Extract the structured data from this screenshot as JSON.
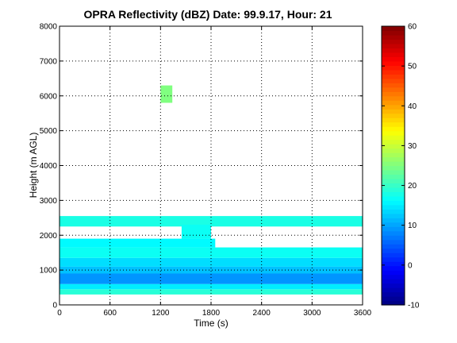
{
  "chart_data": {
    "type": "heatmap",
    "title": "OPRA Reflectivity (dBZ)  Date: 99.9.17, Hour: 21",
    "xlabel": "Time (s)",
    "ylabel": "Height (m AGL)",
    "xlim": [
      0,
      3600
    ],
    "ylim": [
      0,
      8000
    ],
    "x_ticks": [
      "0",
      "600",
      "1200",
      "1800",
      "2400",
      "3000",
      "3600"
    ],
    "y_ticks": [
      "0",
      "1000",
      "2000",
      "3000",
      "4000",
      "5000",
      "6000",
      "7000",
      "8000"
    ],
    "grid": true,
    "colorbar": {
      "range": [
        -10,
        60
      ],
      "ticks": [
        "-10",
        "0",
        "10",
        "20",
        "30",
        "40",
        "50",
        "60"
      ],
      "colormap": "jet"
    },
    "regions": [
      {
        "t0": 0,
        "t1": 3600,
        "h0": 300,
        "h1": 450,
        "dbz": 19
      },
      {
        "t0": 0,
        "t1": 3600,
        "h0": 450,
        "h1": 600,
        "dbz": 15
      },
      {
        "t0": 0,
        "t1": 3600,
        "h0": 600,
        "h1": 900,
        "dbz": 9
      },
      {
        "t0": 0,
        "t1": 3600,
        "h0": 900,
        "h1": 1100,
        "dbz": 12
      },
      {
        "t0": 0,
        "t1": 3600,
        "h0": 1100,
        "h1": 1350,
        "dbz": 14
      },
      {
        "t0": 0,
        "t1": 3600,
        "h0": 1350,
        "h1": 1650,
        "dbz": 17
      },
      {
        "t0": 0,
        "t1": 1850,
        "h0": 1650,
        "h1": 1900,
        "dbz": 16
      },
      {
        "t0": 0,
        "t1": 3600,
        "h0": 2250,
        "h1": 2550,
        "dbz": 18
      },
      {
        "t0": 1450,
        "t1": 1800,
        "h0": 1900,
        "h1": 2300,
        "dbz": 17
      },
      {
        "t0": 1200,
        "t1": 1340,
        "h0": 5800,
        "h1": 6300,
        "dbz": 25
      }
    ]
  }
}
